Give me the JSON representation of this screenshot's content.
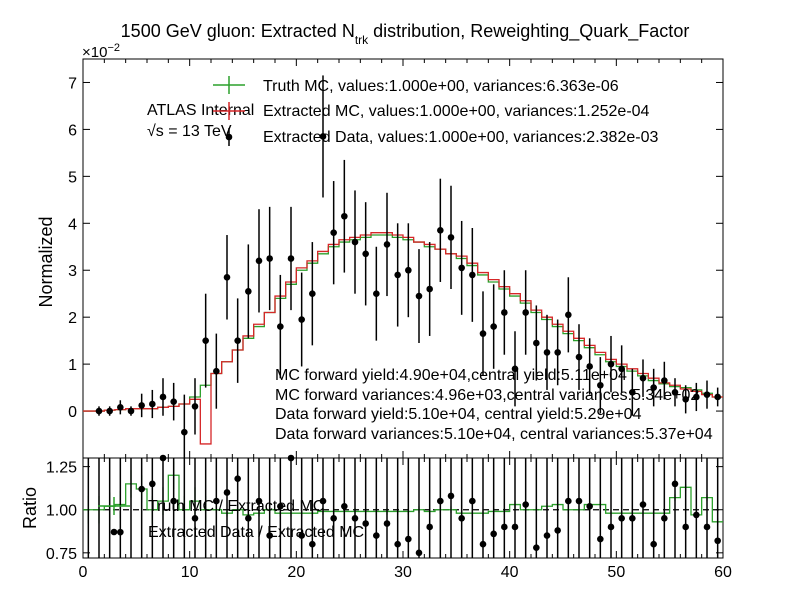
{
  "chart_data": {
    "type": "line",
    "title_main": "1500 GeV gluon: Extracted N",
    "title_sub": "trk",
    "title_rest": " distribution, Reweighting_Quark_Factor",
    "exponent_label": "×10",
    "exponent_power": "−2",
    "atlas_label": "ATLAS Internal",
    "energy_label": "√s = 13 TeV",
    "ylabel_top": "Normalized",
    "ylabel_bottom": "Ratio",
    "xlim": [
      0,
      60
    ],
    "ylim_top": [
      -1,
      7.5
    ],
    "ylim_bottom": [
      0.72,
      1.3
    ],
    "x_ticks": [
      "0",
      "10",
      "20",
      "30",
      "40",
      "50",
      "60"
    ],
    "y_ticks_top": [
      "0",
      "1",
      "2",
      "3",
      "4",
      "5",
      "6",
      "7"
    ],
    "y_ticks_bottom": [
      "0.75",
      "1.00",
      "1.25"
    ],
    "legend_top": [
      {
        "label": "Truth MC, values:1.000e+00, variances:6.363e-06",
        "color": "#2ca02c"
      },
      {
        "label": "Extracted MC, values:1.000e+00, variances:1.252e-04",
        "color": "#d62728"
      },
      {
        "label": "Extracted Data, values:1.000e+00, variances:2.382e-03",
        "color": "#000000"
      }
    ],
    "legend_bottom": [
      {
        "label": "Truth MC / Extracted MC",
        "color": "#2ca02c"
      },
      {
        "label": "Extracted Data / Extracted MC",
        "color": "#000000"
      }
    ],
    "annotations": [
      "MC forward yield:4.90e+04,central yield:5.11e+04",
      "MC forward variances:4.96e+03,central variances:5.34e+02",
      "Data forward yield:5.10e+04, central yield:5.29e+04",
      "Data forward variances:5.10e+04, central variances:5.37e+04"
    ],
    "x": [
      0,
      1,
      2,
      3,
      4,
      5,
      6,
      7,
      8,
      9,
      10,
      11,
      12,
      13,
      14,
      15,
      16,
      17,
      18,
      19,
      20,
      21,
      22,
      23,
      24,
      25,
      26,
      27,
      28,
      29,
      30,
      31,
      32,
      33,
      34,
      35,
      36,
      37,
      38,
      39,
      40,
      41,
      42,
      43,
      44,
      45,
      46,
      47,
      48,
      49,
      50,
      51,
      52,
      53,
      54,
      55,
      56,
      57,
      58,
      59
    ],
    "series": [
      {
        "name": "Truth MC",
        "color": "#2ca02c",
        "values": [
          0,
          0,
          0.02,
          0.03,
          0.05,
          0.05,
          0.05,
          0.08,
          0.1,
          0.15,
          0.3,
          0.55,
          0.8,
          1.05,
          1.3,
          1.55,
          1.8,
          2.1,
          2.4,
          2.7,
          3.0,
          3.15,
          3.35,
          3.5,
          3.6,
          3.65,
          3.7,
          3.75,
          3.75,
          3.7,
          3.65,
          3.6,
          3.5,
          3.45,
          3.35,
          3.25,
          3.1,
          2.9,
          2.75,
          2.6,
          2.45,
          2.3,
          2.1,
          1.95,
          1.8,
          1.65,
          1.5,
          1.35,
          1.2,
          1.05,
          0.95,
          0.85,
          0.75,
          0.65,
          0.58,
          0.52,
          0.5,
          0.45,
          0.38,
          0.3
        ]
      },
      {
        "name": "Extracted MC",
        "color": "#d62728",
        "values": [
          0,
          0,
          0.02,
          0.03,
          0.05,
          0.05,
          0.05,
          0.08,
          0.1,
          0.15,
          0.25,
          -0.7,
          0.8,
          1.05,
          1.3,
          1.6,
          1.85,
          2.1,
          2.45,
          2.75,
          3.05,
          3.2,
          3.4,
          3.55,
          3.65,
          3.7,
          3.75,
          3.8,
          3.8,
          3.75,
          3.7,
          3.6,
          3.55,
          3.45,
          3.35,
          3.3,
          3.15,
          2.95,
          2.8,
          2.65,
          2.5,
          2.35,
          2.15,
          2.0,
          1.85,
          1.7,
          1.55,
          1.4,
          1.25,
          1.1,
          1.0,
          0.9,
          0.8,
          0.7,
          0.6,
          0.55,
          0.47,
          0.42,
          0.35,
          0.3
        ]
      },
      {
        "name": "Extracted Data",
        "color": "#000000",
        "values": [
          null,
          0,
          0,
          0.08,
          0,
          0.12,
          0.15,
          0.3,
          0.2,
          -0.45,
          0.1,
          1.5,
          0.85,
          2.85,
          1.5,
          2.55,
          3.2,
          3.25,
          1.8,
          3.25,
          1.95,
          2.5,
          5.85,
          3.8,
          4.15,
          3.6,
          3.35,
          2.5,
          3.55,
          2.9,
          3.0,
          2.45,
          2.6,
          3.85,
          3.7,
          3.05,
          2.9,
          1.65,
          1.8,
          2.1,
          0.9,
          2.1,
          1.45,
          1.25,
          1.25,
          2.05,
          1.15,
          0.95,
          0.55,
          1.0,
          0.9,
          0.4,
          0.7,
          0.5,
          0.65,
          0.4,
          0.25,
          0.3,
          0.35,
          0.3
        ],
        "errors": [
          null,
          0.1,
          0.1,
          0.15,
          0.1,
          0.25,
          0.3,
          0.4,
          0.4,
          0.8,
          0.6,
          1.0,
          0.8,
          0.9,
          0.9,
          1.0,
          1.1,
          1.1,
          1.1,
          1.1,
          1.0,
          1.1,
          1.3,
          1.1,
          1.2,
          1.1,
          1.1,
          1.0,
          1.1,
          1.1,
          1.0,
          1.0,
          1.0,
          1.1,
          1.1,
          1.0,
          1.0,
          0.9,
          0.9,
          0.9,
          0.8,
          0.9,
          0.8,
          0.8,
          0.7,
          0.8,
          0.7,
          0.6,
          0.6,
          0.6,
          0.5,
          0.5,
          0.4,
          0.4,
          0.4,
          0.3,
          0.3,
          0.3,
          0.3,
          0.2
        ]
      }
    ],
    "ratio_series": [
      {
        "name": "Truth MC / Extracted MC",
        "color": "#2ca02c",
        "values": [
          1,
          1,
          1.02,
          1.03,
          1.15,
          1.12,
          1.0,
          1.05,
          1.2,
          1.0,
          1.05,
          1.0,
          1.0,
          0.98,
          1.0,
          0.97,
          0.98,
          1.0,
          0.98,
          0.98,
          0.98,
          0.98,
          0.99,
          0.99,
          0.99,
          0.99,
          0.99,
          0.99,
          0.99,
          0.99,
          0.99,
          1.0,
          0.99,
          1.0,
          1.0,
          0.98,
          0.98,
          0.98,
          0.99,
          0.99,
          1.03,
          1.0,
          1.0,
          1.02,
          1.03,
          1.0,
          1.0,
          1.03,
          1.03,
          0.98,
          0.98,
          0.98,
          0.98,
          0.98,
          0.98,
          1.07,
          1.13,
          0.97,
          1.07,
          0.93
        ]
      },
      {
        "name": "Extracted Data / Extracted MC",
        "color": "#000000",
        "values": [
          null,
          null,
          null,
          0.87,
          null,
          1.12,
          1.15,
          1.3,
          1.05,
          0.6,
          0.95,
          null,
          1.05,
          1.1,
          1.18,
          0.95,
          1.05,
          0.85,
          1.02,
          1.3,
          0.85,
          0.8,
          1.05,
          0.95,
          1.02,
          0.95,
          0.92,
          0.85,
          0.92,
          0.8,
          0.83,
          0.75,
          0.9,
          1.05,
          1.08,
          0.95,
          1.05,
          0.8,
          0.86,
          0.9,
          0.9,
          1.03,
          0.78,
          0.85,
          0.88,
          1.05,
          1.05,
          1.02,
          0.83,
          0.9,
          0.95,
          0.95,
          1.03,
          0.8,
          0.95,
          1.15,
          0.9,
          0.97,
          0.9,
          0.82
        ]
      }
    ]
  }
}
